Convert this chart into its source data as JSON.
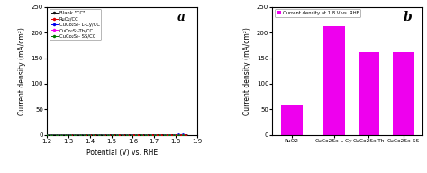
{
  "panel_a": {
    "title": "a",
    "xlabel": "Potential (V) vs. RHE",
    "ylabel": "Current density (mA/cm²)",
    "xlim": [
      1.2,
      1.9
    ],
    "ylim": [
      0,
      250
    ],
    "yticks": [
      0,
      50,
      100,
      150,
      200,
      250
    ],
    "xticks": [
      1.2,
      1.3,
      1.4,
      1.5,
      1.6,
      1.7,
      1.8,
      1.9
    ],
    "curves": [
      {
        "label": "Blank \"CC\"",
        "color": "#111111",
        "marker": "o",
        "A": 8e-05,
        "B": 8.5,
        "x0": 1.2,
        "end_x": 1.85
      },
      {
        "label": "RuO₂/CC",
        "color": "#dd0000",
        "marker": "o",
        "A": 0.0003,
        "B": 9.5,
        "x0": 1.2,
        "end_x": 1.845
      },
      {
        "label": "CuCo₂S₂- L-Cy/CC",
        "color": "#0000ee",
        "marker": "o",
        "A": 0.0001,
        "B": 14.0,
        "x0": 1.2,
        "end_x": 1.835
      },
      {
        "label": "CuCo₂S₂-Th/CC",
        "color": "#ee00ee",
        "marker": "o",
        "A": 5e-05,
        "B": 13.5,
        "x0": 1.2,
        "end_x": 1.835
      },
      {
        "label": "CuCo₂S₂- SS/CC",
        "color": "#007700",
        "marker": "o",
        "A": 4e-05,
        "B": 13.2,
        "x0": 1.2,
        "end_x": 1.835
      }
    ],
    "n_markers": 30
  },
  "panel_b": {
    "title": "b",
    "ylabel": "Current density (mA/cm²)",
    "ylim": [
      0,
      250
    ],
    "yticks": [
      0,
      50,
      100,
      150,
      200,
      250
    ],
    "bar_color": "#ee00ee",
    "legend_label": "Current density at 1.8 V vs. RHE",
    "categories": [
      "RuO2",
      "CuCo2Sx-L-Cy",
      "CuCo2Sx-Th",
      "CuCo2Sx-SS"
    ],
    "values": [
      60,
      213,
      161,
      162
    ],
    "bar_width": 0.55
  }
}
